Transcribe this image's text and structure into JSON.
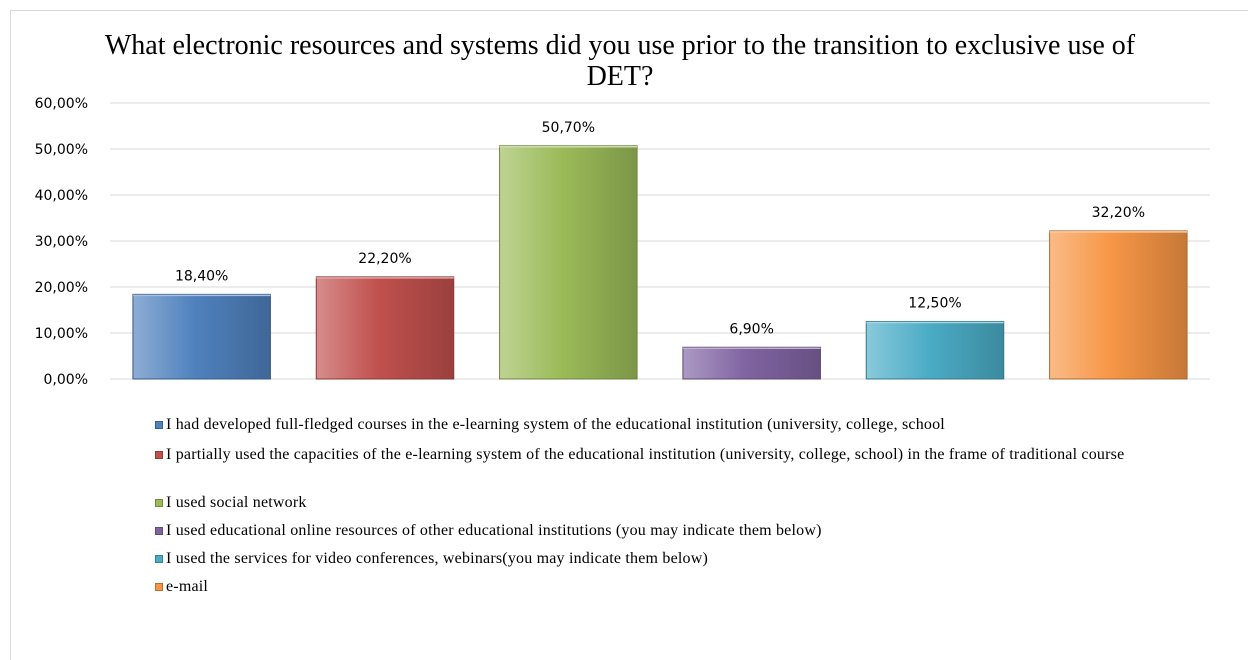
{
  "chart_data": {
    "type": "bar",
    "title": "What electronic resources and systems did you use prior to the transition to exclusive use of DET?",
    "ylim": [
      0,
      60
    ],
    "yticks": [
      "0,00%",
      "10,00%",
      "20,00%",
      "30,00%",
      "40,00%",
      "50,00%",
      "60,00%"
    ],
    "grid": true,
    "legend_position": "bottom",
    "series": [
      {
        "name": "I had developed full-fledged courses in the e-learning system of the educational institution (university, college, school",
        "value": 18.4,
        "label": "18,40%",
        "color": "#4f81bd"
      },
      {
        "name": "I partially used the capacities of the e-learning system of the educational institution (university, college, school) in the frame of traditional course",
        "value": 22.2,
        "label": "22,20%",
        "color": "#c0504d"
      },
      {
        "name": "I used social network",
        "value": 50.7,
        "label": "50,70%",
        "color": "#9bbb59"
      },
      {
        "name": "I used educational online resources of other educational institutions (you may indicate them below)",
        "value": 6.9,
        "label": "6,90%",
        "color": "#8064a2"
      },
      {
        "name": "I used the services for video conferences, webinars(you may indicate them below)",
        "value": 12.5,
        "label": "12,50%",
        "color": "#4bacc6"
      },
      {
        "name": "e-mail",
        "value": 32.2,
        "label": "32,20%",
        "color": "#f79646"
      }
    ]
  }
}
